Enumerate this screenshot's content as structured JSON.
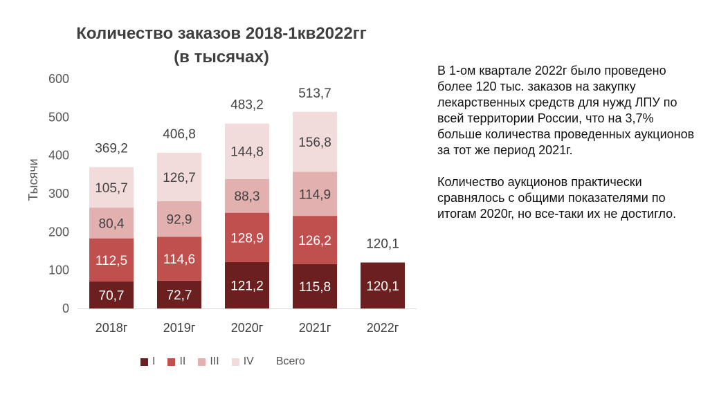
{
  "chart_data": {
    "type": "bar",
    "stacked": true,
    "title": "Количество заказов 2018-1кв2022гг",
    "subtitle": "(в тысячах)",
    "ylabel": "Тысячи",
    "xlabel": "",
    "ylim": [
      0,
      600
    ],
    "yticks": [
      "0",
      "100",
      "200",
      "300",
      "400",
      "500",
      "600"
    ],
    "grid": false,
    "legend_position": "bottom",
    "categories": [
      "2018г",
      "2019г",
      "2020г",
      "2021г",
      "2022г"
    ],
    "series": [
      {
        "name": "I",
        "color": "#6b1f1f",
        "values": [
          70.7,
          72.7,
          121.2,
          115.8,
          120.1
        ],
        "labels": [
          "70,7",
          "72,7",
          "121,2",
          "115,8",
          "120,1"
        ]
      },
      {
        "name": "II",
        "color": "#c0504d",
        "values": [
          112.5,
          114.6,
          128.9,
          126.2,
          null
        ],
        "labels": [
          "112,5",
          "114,6",
          "128,9",
          "126,2",
          ""
        ]
      },
      {
        "name": "III",
        "color": "#e3b0b0",
        "values": [
          80.4,
          92.9,
          88.3,
          114.9,
          null
        ],
        "labels": [
          "80,4",
          "92,9",
          "88,3",
          "114,9",
          ""
        ]
      },
      {
        "name": "IV",
        "color": "#f2dcdb",
        "values": [
          105.7,
          126.7,
          144.8,
          156.8,
          null
        ],
        "labels": [
          "105,7",
          "126,7",
          "144,8",
          "156,8",
          ""
        ]
      }
    ],
    "totals": {
      "name": "Всего",
      "values": [
        369.2,
        406.8,
        483.2,
        513.7,
        120.1
      ],
      "labels": [
        "369,2",
        "406,8",
        "483,2",
        "513,7",
        "120,1"
      ]
    }
  },
  "side_text": [
    "В 1-ом квартале 2022г было проведено более 120 тыс. заказов на закупку лекарственных средств для нужд ЛПУ по всей территории России, что на 3,7% больше количества проведенных аукционов за тот же период 2021г.",
    "Количество аукционов практически сравнялось с общими показателями по итогам 2020г, но все-таки их не достигло."
  ]
}
